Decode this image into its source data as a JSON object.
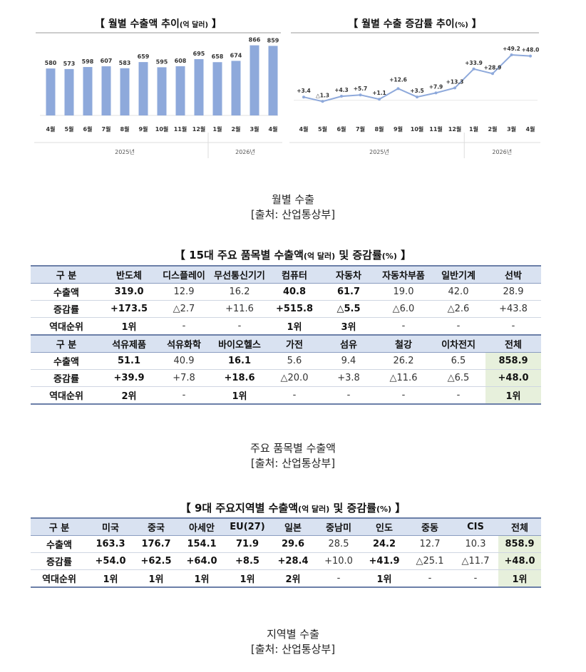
{
  "charts": {
    "left": {
      "title": "【 월별 수출액 추이",
      "unit": "(억 달러)",
      "close": " 】",
      "years": [
        "2025년",
        "2026년"
      ]
    },
    "right": {
      "title": "【 월별 수출 증감률 추이",
      "unit": "(%)",
      "close": " 】",
      "years": [
        "2025년",
        "2026년"
      ]
    }
  },
  "chart_data": [
    {
      "type": "bar",
      "title": "월별 수출액 추이(억 달러)",
      "categories": [
        "4월",
        "5월",
        "6월",
        "7월",
        "8월",
        "9월",
        "10월",
        "11월",
        "12월",
        "1월",
        "2월",
        "3월",
        "4월"
      ],
      "values": [
        580,
        573,
        598,
        607,
        583,
        659,
        595,
        608,
        695,
        658,
        674,
        866,
        859
      ],
      "labels": [
        "580",
        "573",
        "598",
        "607",
        "583",
        "659",
        "595",
        "608",
        "695",
        "658",
        "674",
        "866",
        "859"
      ],
      "year_groups": [
        {
          "label": "2025년",
          "span": 9
        },
        {
          "label": "2026년",
          "span": 4
        }
      ],
      "color": "#8ea9db",
      "grid": false
    },
    {
      "type": "line",
      "title": "월별 수출 증감률 추이(%)",
      "categories": [
        "4월",
        "5월",
        "6월",
        "7월",
        "8월",
        "9월",
        "10월",
        "11월",
        "12월",
        "1월",
        "2월",
        "3월",
        "4월"
      ],
      "values": [
        3.4,
        -1.3,
        4.3,
        5.7,
        1.1,
        12.6,
        3.5,
        7.9,
        13.3,
        33.9,
        28.9,
        49.2,
        48.0
      ],
      "labels": [
        "+3.4",
        "△1.3",
        "+4.3",
        "+5.7",
        "+1.1",
        "+12.6",
        "+3.5",
        "+7.9",
        "+13.3",
        "+33.9",
        "+28.9",
        "+49.2",
        "+48.0"
      ],
      "year_groups": [
        {
          "label": "2025년",
          "span": 9
        },
        {
          "label": "2026년",
          "span": 4
        }
      ],
      "color": "#8ea9db",
      "grid": false
    },
    {
      "type": "table",
      "title": "15대 주요 품목별 수출액(억 달러) 및 증감률(%)",
      "rows_top": {
        "header": [
          "구 분",
          "반도체",
          "디스플레이",
          "무선통신기기",
          "컴퓨터",
          "자동차",
          "자동차부품",
          "일반기계",
          "선박"
        ],
        "export": [
          "수출액",
          "319.0",
          "12.9",
          "16.2",
          "40.8",
          "61.7",
          "19.0",
          "42.0",
          "28.9"
        ],
        "growth": [
          "증감률",
          "+173.5",
          "△2.7",
          "+11.6",
          "+515.8",
          "△5.5",
          "△6.0",
          "△2.6",
          "+43.8"
        ],
        "rank": [
          "역대순위",
          "1위",
          "-",
          "-",
          "1위",
          "3위",
          "-",
          "-",
          "-"
        ]
      },
      "rows_bottom": {
        "header": [
          "구 분",
          "석유제품",
          "석유화학",
          "바이오헬스",
          "가전",
          "섬유",
          "철강",
          "이차전지",
          "전체"
        ],
        "export": [
          "수출액",
          "51.1",
          "40.9",
          "16.1",
          "5.6",
          "9.4",
          "26.2",
          "6.5",
          "858.9"
        ],
        "growth": [
          "증감률",
          "+39.9",
          "+7.8",
          "+18.6",
          "△20.0",
          "+3.8",
          "△11.6",
          "△6.5",
          "+48.0"
        ],
        "rank": [
          "역대순위",
          "2위",
          "-",
          "1위",
          "-",
          "-",
          "-",
          "-",
          "1위"
        ]
      }
    },
    {
      "type": "table",
      "title": "9대 주요지역별 수출액(억 달러) 및 증감률(%)",
      "header": [
        "구 분",
        "미국",
        "중국",
        "아세안",
        "EU(27)",
        "일본",
        "중남미",
        "인도",
        "중동",
        "CIS",
        "전체"
      ],
      "export": [
        "수출액",
        "163.3",
        "176.7",
        "154.1",
        "71.9",
        "29.6",
        "28.5",
        "24.2",
        "12.7",
        "10.3",
        "858.9"
      ],
      "growth": [
        "증감률",
        "+54.0",
        "+62.5",
        "+64.0",
        "+8.5",
        "+28.4",
        "+10.0",
        "+41.9",
        "△25.1",
        "△11.7",
        "+48.0"
      ],
      "rank": [
        "역대순위",
        "1위",
        "1위",
        "1위",
        "1위",
        "2위",
        "-",
        "1위",
        "-",
        "-",
        "1위"
      ]
    }
  ],
  "item_table": {
    "title": "【 15대 주요 품목별 수출액",
    "unit1": "(억 달러)",
    "mid": " 및 증감률",
    "unit2": "(%)",
    "close": " 】"
  },
  "region_table": {
    "title": "【 9대 주요지역별 수출액",
    "unit1": "(억 달러)",
    "mid": " 및 증감률",
    "unit2": "(%)",
    "close": " 】"
  },
  "captions": {
    "monthly": "월별 수출",
    "items": "주요 품목별 수출액",
    "regions": "지역별 수출",
    "source": "[출처: 산업통상부]"
  }
}
